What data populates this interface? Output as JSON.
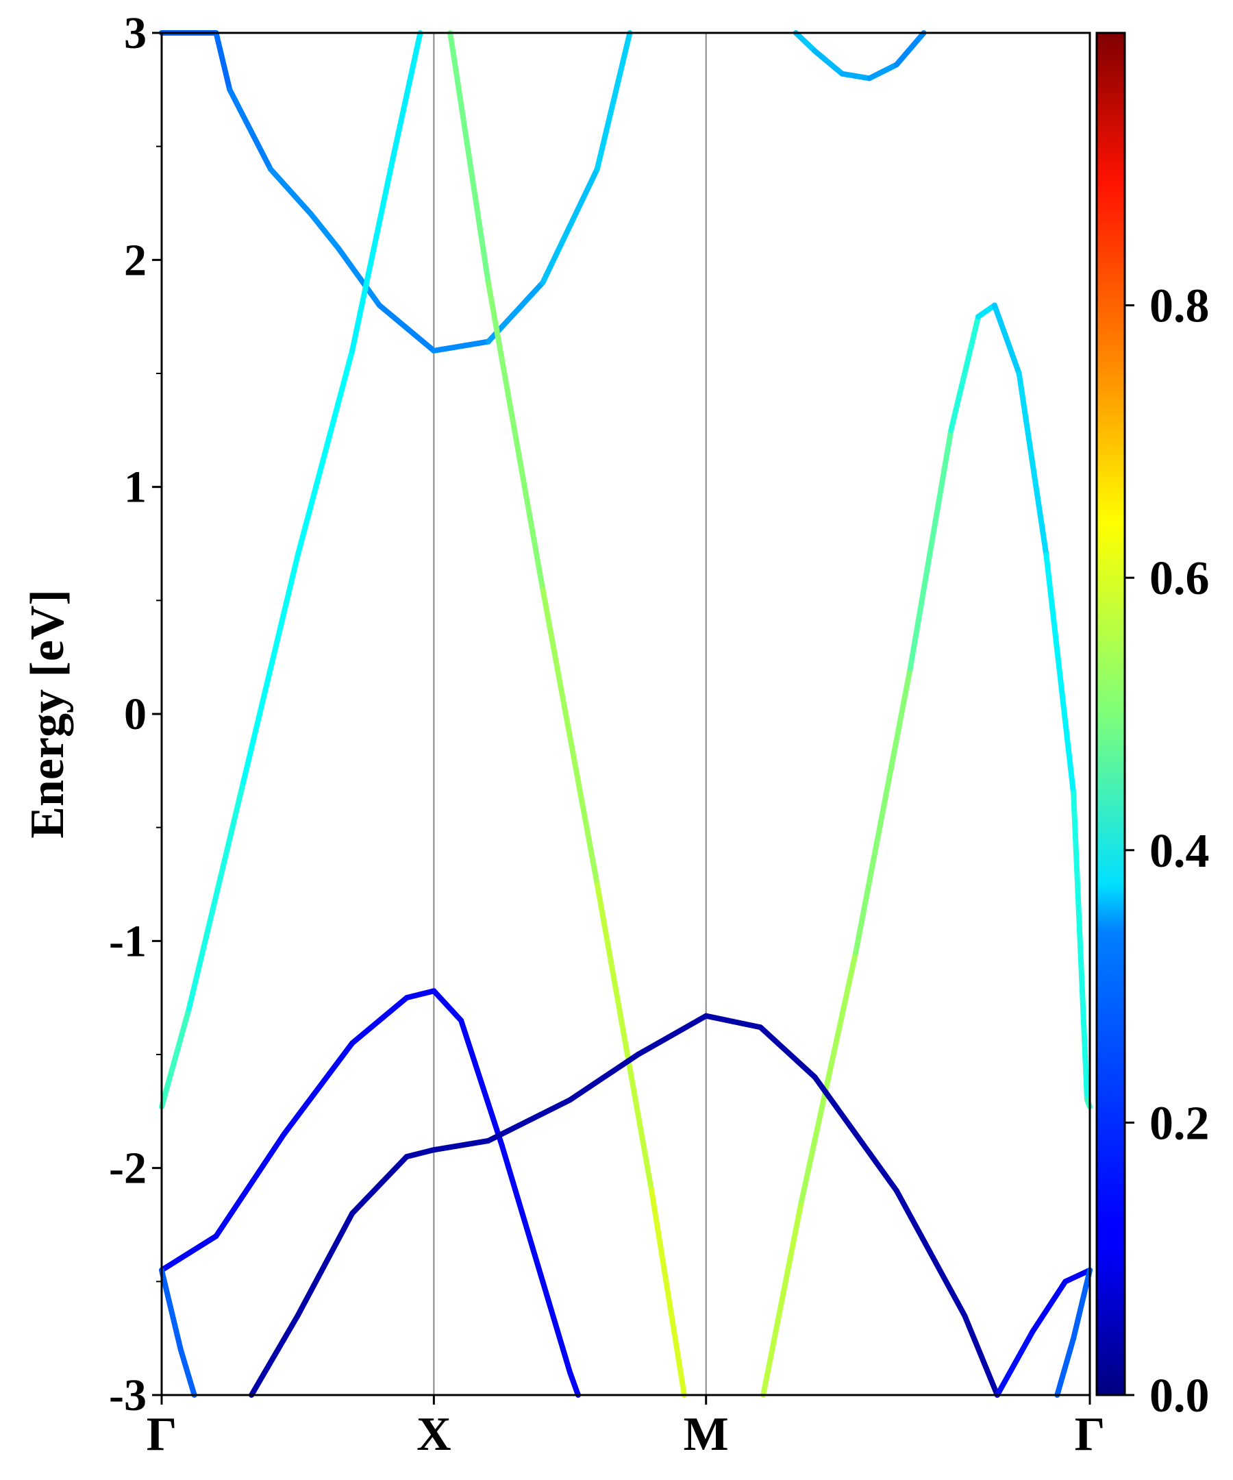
{
  "chart_data": {
    "type": "line",
    "title": "",
    "xlabel": "",
    "ylabel": "Energy [eV]",
    "ylim": [
      -3,
      3
    ],
    "yticks": [
      "-3",
      "-2",
      "-1",
      "0",
      "1",
      "2",
      "3"
    ],
    "xticks": [
      "Γ",
      "X",
      "M",
      "Γ"
    ],
    "grid": false,
    "colorbar": {
      "colormap": "jet",
      "range": [
        0,
        1
      ],
      "ticks": [
        "0.0",
        "0.2",
        "0.4",
        "0.6",
        "0.8"
      ]
    },
    "x_units": "k-path position (Γ=0, X=1, M=2, Γ=3.41)",
    "series": [
      {
        "points": [
          [
            0,
            3.0
          ],
          [
            0.2,
            3.0
          ],
          [
            0.25,
            2.75
          ],
          [
            0.4,
            2.4
          ],
          [
            0.55,
            2.2
          ],
          [
            0.65,
            2.05
          ],
          [
            0.8,
            1.8
          ],
          [
            1.0,
            1.6
          ],
          [
            1.2,
            1.64
          ],
          [
            1.4,
            1.9
          ],
          [
            1.6,
            2.4
          ],
          [
            1.72,
            3.0
          ]
        ],
        "weights": [
          0.22,
          0.22,
          0.24,
          0.26,
          0.27,
          0.27,
          0.26,
          0.25,
          0.27,
          0.3,
          0.33,
          0.33
        ]
      },
      {
        "points": [
          [
            0.0,
            -1.73
          ],
          [
            0.1,
            -1.3
          ],
          [
            0.3,
            -0.3
          ],
          [
            0.5,
            0.7
          ],
          [
            0.7,
            1.6
          ],
          [
            0.85,
            2.45
          ],
          [
            0.95,
            3.0
          ]
        ],
        "weights": [
          0.45,
          0.42,
          0.38,
          0.38,
          0.37,
          0.36,
          0.36
        ]
      },
      {
        "points": [
          [
            1.06,
            3.0
          ],
          [
            1.2,
            1.9
          ],
          [
            1.4,
            0.55
          ],
          [
            1.6,
            -0.75
          ],
          [
            1.8,
            -2.1
          ],
          [
            1.92,
            -3.0
          ]
        ],
        "weights": [
          0.48,
          0.5,
          0.52,
          0.55,
          0.58,
          0.6
        ]
      },
      {
        "points": [
          [
            2.21,
            -3.0
          ],
          [
            2.35,
            -2.15
          ],
          [
            2.55,
            -1.05
          ],
          [
            2.75,
            0.2
          ],
          [
            2.9,
            1.25
          ],
          [
            3.0,
            1.75
          ],
          [
            3.06,
            1.8
          ],
          [
            3.15,
            1.5
          ],
          [
            3.25,
            0.7
          ],
          [
            3.35,
            -0.35
          ],
          [
            3.4,
            -1.7
          ],
          [
            3.41,
            -1.73
          ]
        ],
        "weights": [
          0.57,
          0.55,
          0.53,
          0.49,
          0.44,
          0.38,
          0.32,
          0.33,
          0.35,
          0.38,
          0.42,
          0.45
        ]
      },
      {
        "points": [
          [
            2.33,
            3.0
          ],
          [
            2.4,
            2.92
          ],
          [
            2.5,
            2.82
          ],
          [
            2.6,
            2.8
          ],
          [
            2.7,
            2.86
          ],
          [
            2.8,
            3.0
          ]
        ],
        "weights": [
          0.33,
          0.31,
          0.3,
          0.29,
          0.27,
          0.25
        ]
      },
      {
        "points": [
          [
            0.0,
            -2.45
          ],
          [
            0.2,
            -2.3
          ],
          [
            0.45,
            -1.85
          ],
          [
            0.7,
            -1.45
          ],
          [
            0.9,
            -1.25
          ],
          [
            1.0,
            -1.22
          ],
          [
            1.1,
            -1.35
          ],
          [
            1.25,
            -1.9
          ],
          [
            1.4,
            -2.5
          ],
          [
            1.5,
            -2.9
          ],
          [
            1.53,
            -3.0
          ]
        ],
        "weights": [
          0.12,
          0.12,
          0.12,
          0.12,
          0.12,
          0.12,
          0.12,
          0.12,
          0.12,
          0.12,
          0.12
        ]
      },
      {
        "points": [
          [
            0.0,
            -2.45
          ],
          [
            0.07,
            -2.8
          ],
          [
            0.12,
            -3.0
          ]
        ],
        "weights": [
          0.22,
          0.22,
          0.22
        ]
      },
      {
        "points": [
          [
            0.33,
            -3.0
          ],
          [
            0.5,
            -2.65
          ],
          [
            0.7,
            -2.2
          ],
          [
            0.9,
            -1.95
          ],
          [
            1.0,
            -1.92
          ],
          [
            1.2,
            -1.88
          ],
          [
            1.5,
            -1.7
          ],
          [
            1.75,
            -1.5
          ],
          [
            2.0,
            -1.33
          ],
          [
            2.2,
            -1.38
          ],
          [
            2.4,
            -1.6
          ],
          [
            2.7,
            -2.1
          ],
          [
            2.95,
            -2.65
          ],
          [
            3.07,
            -3.0
          ]
        ],
        "weights": [
          0.04,
          0.04,
          0.04,
          0.04,
          0.04,
          0.04,
          0.04,
          0.04,
          0.04,
          0.04,
          0.04,
          0.04,
          0.04,
          0.04
        ]
      },
      {
        "points": [
          [
            3.07,
            -3.0
          ],
          [
            3.2,
            -2.72
          ],
          [
            3.32,
            -2.5
          ],
          [
            3.41,
            -2.45
          ]
        ],
        "weights": [
          0.14,
          0.13,
          0.12,
          0.12
        ]
      },
      {
        "points": [
          [
            3.29,
            -3.0
          ],
          [
            3.35,
            -2.75
          ],
          [
            3.41,
            -2.45
          ]
        ],
        "weights": [
          0.22,
          0.22,
          0.22
        ]
      }
    ]
  }
}
